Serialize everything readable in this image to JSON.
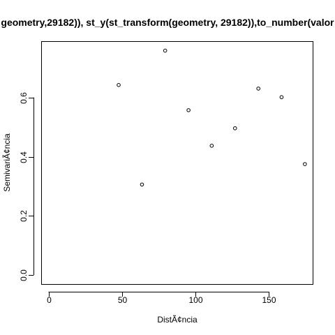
{
  "chart_data": {
    "type": "scatter",
    "title": "geometry,29182)), st_y(st_transform(geometry, 29182)),to_number(valor",
    "xlabel": "DistÃ¢ncia",
    "ylabel": "SemivariÃ¢ncia",
    "xlim": [
      -5,
      180
    ],
    "ylim": [
      -0.03,
      0.79
    ],
    "xticks": [
      0,
      50,
      100,
      150
    ],
    "yticks": [
      0.0,
      0.2,
      0.4,
      0.6
    ],
    "xtick_labels": [
      "0",
      "50",
      "100",
      "150"
    ],
    "ytick_labels": [
      "0.0",
      "0.2",
      "0.4",
      "0.6"
    ],
    "grid": false,
    "points": [
      {
        "x": 47.8,
        "y": 0.642
      },
      {
        "x": 63.7,
        "y": 0.306
      },
      {
        "x": 79.5,
        "y": 0.758
      },
      {
        "x": 95.4,
        "y": 0.557
      },
      {
        "x": 111.2,
        "y": 0.437
      },
      {
        "x": 127.1,
        "y": 0.496
      },
      {
        "x": 143.0,
        "y": 0.63
      },
      {
        "x": 158.8,
        "y": 0.601
      },
      {
        "x": 174.7,
        "y": 0.375
      }
    ]
  }
}
